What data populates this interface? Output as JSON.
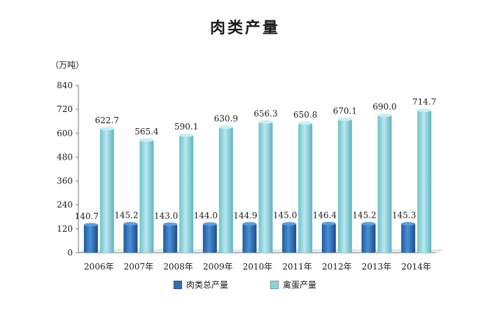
{
  "colors": {
    "meat": "#2f72b8",
    "meat_dark": "#1c4d86",
    "egg": "#8ed3dc",
    "egg_dark": "#4aa7b5",
    "axis": "#777777"
  },
  "chart_data": {
    "type": "bar",
    "title": "肉类产量",
    "unit": "（万吨）",
    "categories": [
      "2006年",
      "2007年",
      "2008年",
      "2009年",
      "2010年",
      "2011年",
      "2012年",
      "2013年",
      "2014年"
    ],
    "series": [
      {
        "name": "肉类总产量",
        "values": [
          140.7,
          145.2,
          143.0,
          144.0,
          144.9,
          145.0,
          146.4,
          145.2,
          145.3
        ],
        "labels": [
          "140.7",
          "145.2",
          "143.0",
          "144.0",
          "144.9",
          "145.0",
          "146.4",
          "145.2",
          "145.3"
        ]
      },
      {
        "name": "禽蛋产量",
        "values": [
          622.7,
          565.4,
          590.1,
          630.9,
          656.3,
          650.8,
          670.1,
          690.0,
          714.7
        ],
        "labels": [
          "622.7",
          "565.4",
          "590.1",
          "630.9",
          "656.3",
          "650.8",
          "670.1",
          "690.0",
          "714.7"
        ]
      }
    ],
    "yticks": [
      0,
      120,
      240,
      360,
      480,
      600,
      720,
      840
    ],
    "ylim": [
      0,
      840
    ],
    "legend_position": "bottom"
  }
}
